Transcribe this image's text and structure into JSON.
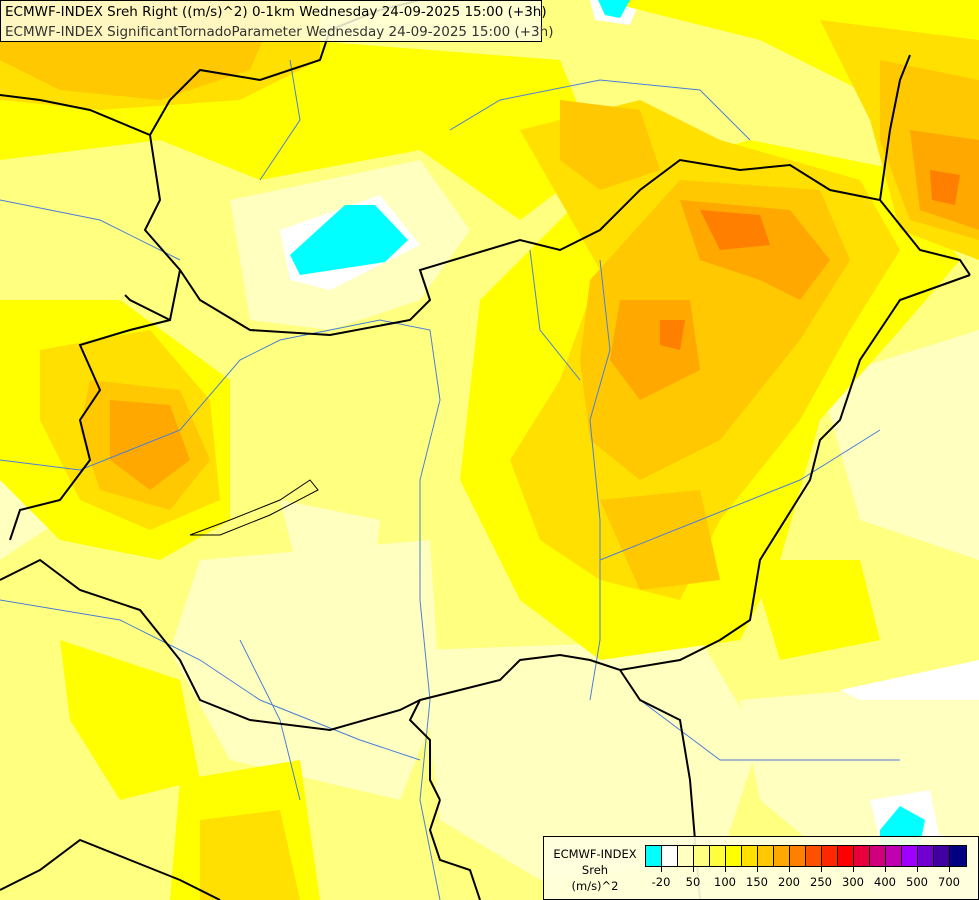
{
  "title": {
    "line1": "ECMWF-INDEX Sreh Right ((m/s)^2) 0-1km Wednesday 24-09-2025 15:00 (+3h)",
    "line2": "ECMWF-INDEX SignificantTornadoParameter Wednesday 24-09-2025 15:00 (+3h)"
  },
  "legend": {
    "name_line1": "ECMWF-INDEX",
    "name_line2": "Sreh",
    "unit": "(m/s)^2",
    "colors": [
      "#00ffff",
      "#ffffff",
      "#ffffc0",
      "#ffff80",
      "#ffff40",
      "#ffff00",
      "#ffe000",
      "#ffc800",
      "#ffa800",
      "#ff8000",
      "#ff5000",
      "#ff2800",
      "#ff0000",
      "#e8003c",
      "#d0007c",
      "#c000b0",
      "#a000ff",
      "#7000d0",
      "#4000a0",
      "#000080"
    ],
    "labels": [
      "-20",
      "50",
      "100",
      "150",
      "200",
      "250",
      "300",
      "400",
      "500",
      "700"
    ]
  },
  "map": {
    "background": "#ffff80",
    "pale": "#ffffc0",
    "yellow": "#ffff00",
    "gold": "#ffe000",
    "amber": "#ffc800",
    "orange": "#ffa800",
    "dark_orange": "#ff8000",
    "cold": "#00ffff",
    "border_color": "#000000",
    "river_color": "#4a7fd8"
  }
}
